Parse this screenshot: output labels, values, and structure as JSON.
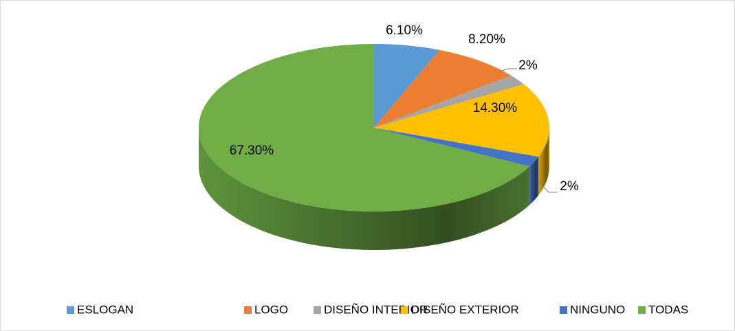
{
  "chart_data": {
    "type": "pie",
    "categories": [
      "ESLOGAN",
      "LOGO",
      "DISEÑO INTERIOR",
      "DISEÑO EXTERIOR",
      "NINGUNO",
      "TODAS"
    ],
    "values": [
      6.1,
      8.2,
      2,
      14.3,
      2,
      67.3
    ],
    "value_labels": [
      "6.10%",
      "8.20%",
      "2%",
      "14.30%",
      "2%",
      "67.30%"
    ],
    "colors": [
      "#5b9bd5",
      "#ed7d31",
      "#a5a5a5",
      "#ffc000",
      "#4472c4",
      "#70ad47"
    ],
    "legend": "bottom"
  }
}
